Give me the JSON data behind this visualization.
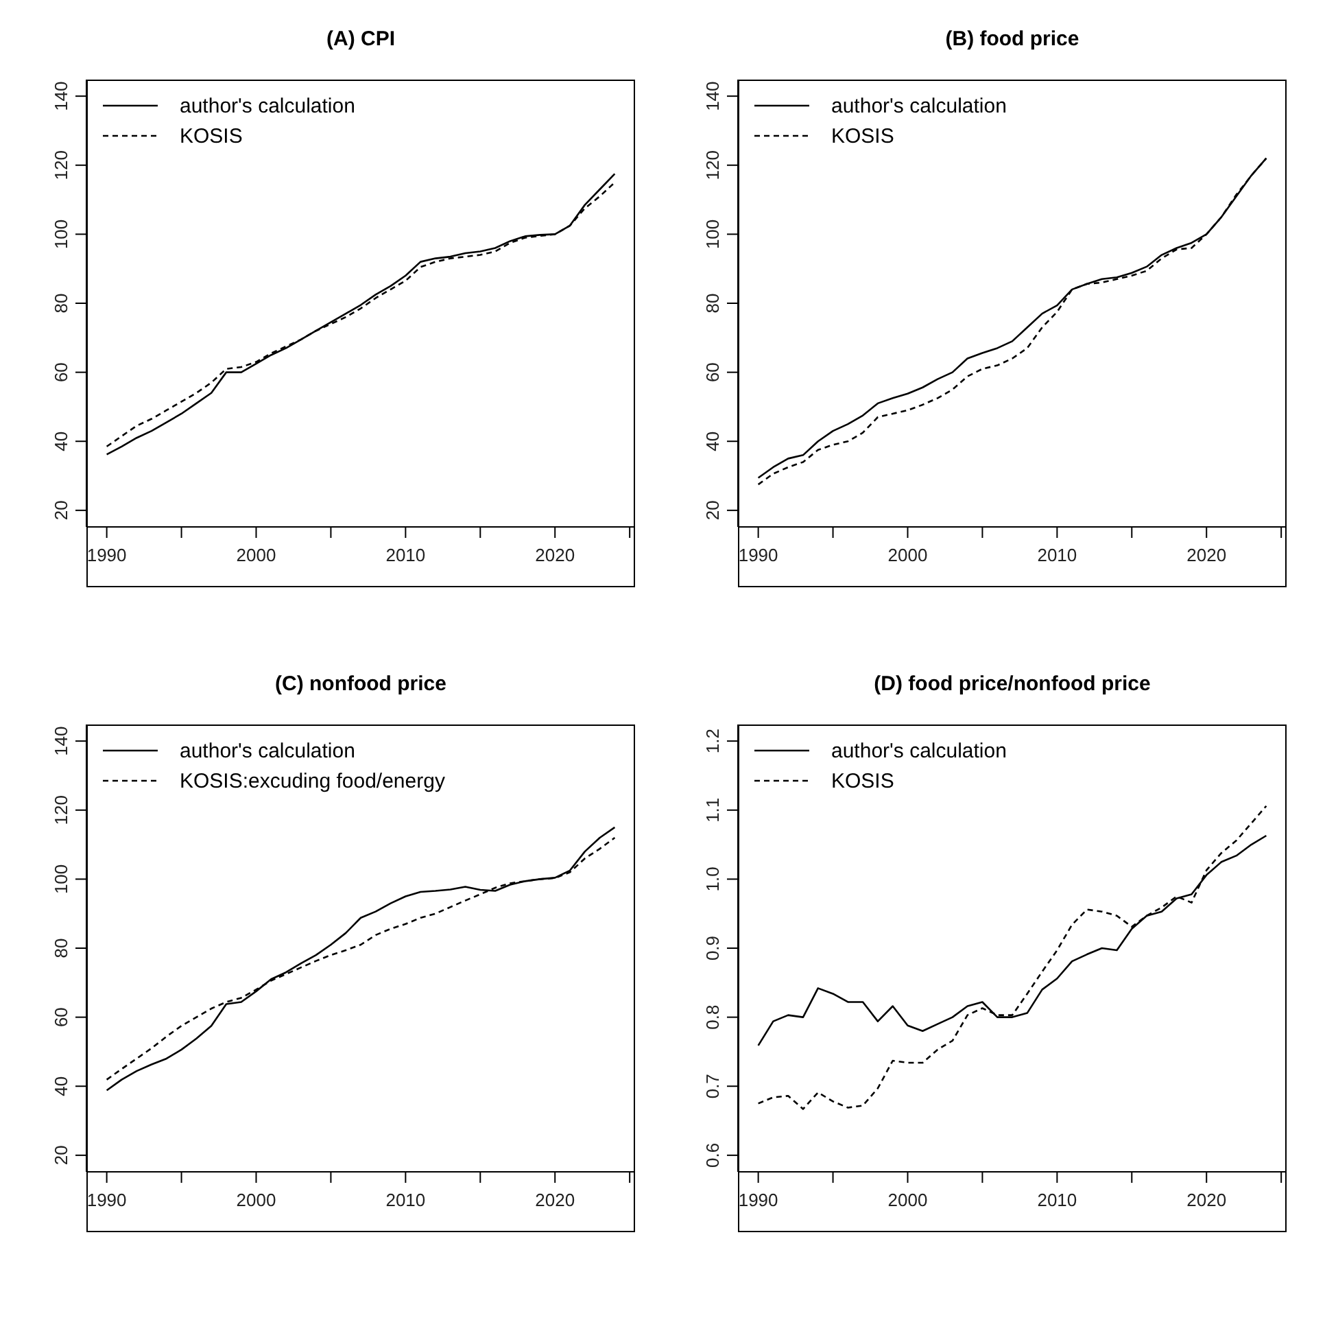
{
  "chart_data": [
    {
      "type": "line",
      "title": "(A) CPI",
      "x": [
        1990,
        1991,
        1992,
        1993,
        1994,
        1995,
        1996,
        1997,
        1998,
        1999,
        2000,
        2001,
        2002,
        2003,
        2004,
        2005,
        2006,
        2007,
        2008,
        2009,
        2010,
        2011,
        2012,
        2013,
        2014,
        2015,
        2016,
        2017,
        2018,
        2019,
        2020,
        2021,
        2022,
        2023,
        2024
      ],
      "series": [
        {
          "name": "author's calculation",
          "color": "#000000",
          "line_style": "solid",
          "values": [
            36.2,
            38.5,
            41,
            43,
            45.5,
            48,
            51,
            54,
            60,
            60,
            62.5,
            65,
            67,
            69.5,
            72,
            74.5,
            77,
            79.5,
            82.5,
            85,
            88,
            92,
            93,
            93.5,
            94.5,
            95,
            96,
            98,
            99.4,
            99.8,
            100,
            102.5,
            108.5,
            113,
            117.5
          ]
        },
        {
          "name": "KOSIS",
          "color": "#000000",
          "line_style": "dashed",
          "values": [
            38.5,
            41.5,
            44.5,
            46.5,
            49,
            51.5,
            54,
            57,
            61,
            61.5,
            63,
            65.5,
            67.5,
            69.5,
            72,
            74,
            76,
            78.5,
            81.5,
            84,
            86.5,
            90.5,
            92,
            93,
            93.5,
            94,
            95,
            97.5,
            99,
            99.5,
            100,
            102.5,
            107.5,
            111,
            115
          ]
        }
      ],
      "xlim": [
        1988.64,
        2025.36
      ],
      "xticks": [
        1990,
        {
          "value": 1995,
          "label": null
        },
        2000,
        {
          "value": 2005,
          "label": null
        },
        2010,
        {
          "value": 2015,
          "label": null
        },
        2020,
        {
          "value": 2025,
          "label": null
        }
      ],
      "ylim": [
        15.2,
        144.8
      ],
      "yticks": [
        20,
        40,
        60,
        80,
        100,
        120,
        140
      ],
      "grid": false,
      "legend": "top left"
    },
    {
      "type": "line",
      "title": "(B) food price",
      "x": [
        1990,
        1991,
        1992,
        1993,
        1994,
        1995,
        1996,
        1997,
        1998,
        1999,
        2000,
        2001,
        2002,
        2003,
        2004,
        2005,
        2006,
        2007,
        2008,
        2009,
        2010,
        2011,
        2012,
        2013,
        2014,
        2015,
        2016,
        2017,
        2018,
        2019,
        2020,
        2021,
        2022,
        2023,
        2024
      ],
      "series": [
        {
          "name": "author's calculation",
          "color": "#000000",
          "line_style": "solid",
          "values": [
            29.4,
            32.5,
            35,
            36,
            40,
            43,
            45,
            47.5,
            51,
            52.5,
            53.8,
            55.6,
            58,
            60,
            64,
            65.6,
            67,
            69,
            73,
            77,
            79.4,
            84,
            85.6,
            87,
            87.5,
            88.8,
            90.6,
            94,
            96,
            97.5,
            100,
            105,
            111,
            117,
            122
          ]
        },
        {
          "name": "KOSIS",
          "color": "#000000",
          "line_style": "dashed",
          "values": [
            27.5,
            30.6,
            32.5,
            34,
            37.5,
            39,
            40,
            42.5,
            47,
            48,
            49,
            50.6,
            52.5,
            55,
            58.8,
            61,
            62,
            64,
            67,
            73,
            77.5,
            84,
            85.6,
            86,
            87,
            88,
            89.4,
            93,
            95.6,
            96,
            100,
            105,
            111.5,
            117,
            122
          ]
        }
      ],
      "xlim": [
        1988.64,
        2025.36
      ],
      "xticks": [
        1990,
        {
          "value": 1995,
          "label": null
        },
        2000,
        {
          "value": 2005,
          "label": null
        },
        2010,
        {
          "value": 2015,
          "label": null
        },
        2020,
        {
          "value": 2025,
          "label": null
        }
      ],
      "ylim": [
        15.2,
        144.8
      ],
      "yticks": [
        20,
        40,
        60,
        80,
        100,
        120,
        140
      ],
      "grid": false,
      "legend": "top left"
    },
    {
      "type": "line",
      "title": "(C) nonfood price",
      "x": [
        1990,
        1991,
        1992,
        1993,
        1994,
        1995,
        1996,
        1997,
        1998,
        1999,
        2000,
        2001,
        2002,
        2003,
        2004,
        2005,
        2006,
        2007,
        2008,
        2009,
        2010,
        2011,
        2012,
        2013,
        2014,
        2015,
        2016,
        2017,
        2018,
        2019,
        2020,
        2021,
        2022,
        2023,
        2024
      ],
      "series": [
        {
          "name": "author's calculation",
          "color": "#000000",
          "line_style": "solid",
          "values": [
            38.8,
            41.9,
            44.4,
            46.3,
            48,
            50.6,
            53.8,
            57.5,
            63.8,
            64.4,
            67.5,
            71,
            73,
            75.6,
            78,
            81,
            84.4,
            88.8,
            90.6,
            93,
            95,
            96.3,
            96.6,
            97,
            97.8,
            96.9,
            96.6,
            98.4,
            99.4,
            100,
            100.4,
            102.5,
            108,
            112,
            115
          ]
        },
        {
          "name": "KOSIS:excuding food/energy",
          "color": "#000000",
          "line_style": "dashed",
          "values": [
            41.9,
            45,
            48,
            51,
            54.4,
            57.5,
            60,
            62.5,
            64.4,
            65.6,
            68,
            70.6,
            72.5,
            74.4,
            76.3,
            78,
            79.4,
            81,
            83.8,
            85.6,
            87,
            88.8,
            90,
            91.9,
            93.8,
            95.6,
            97.5,
            98.8,
            99.4,
            100,
            100.3,
            102,
            106,
            108.8,
            112
          ]
        }
      ],
      "xlim": [
        1988.64,
        2025.36
      ],
      "xticks": [
        1990,
        {
          "value": 1995,
          "label": null
        },
        2000,
        {
          "value": 2005,
          "label": null
        },
        2010,
        {
          "value": 2015,
          "label": null
        },
        2020,
        {
          "value": 2025,
          "label": null
        }
      ],
      "ylim": [
        15.2,
        144.8
      ],
      "yticks": [
        20,
        40,
        60,
        80,
        100,
        120,
        140
      ],
      "grid": false,
      "legend": "top left"
    },
    {
      "type": "line",
      "title": "(D) food price/nonfood price",
      "x": [
        1990,
        1991,
        1992,
        1993,
        1994,
        1995,
        1996,
        1997,
        1998,
        1999,
        2000,
        2001,
        2002,
        2003,
        2004,
        2005,
        2006,
        2007,
        2008,
        2009,
        2010,
        2011,
        2012,
        2013,
        2014,
        2015,
        2016,
        2017,
        2018,
        2019,
        2020,
        2021,
        2022,
        2023,
        2024
      ],
      "series": [
        {
          "name": "author's calculation",
          "color": "#000000",
          "line_style": "solid",
          "values": [
            0.759,
            0.794,
            0.803,
            0.8,
            0.842,
            0.834,
            0.822,
            0.822,
            0.794,
            0.816,
            0.788,
            0.78,
            0.79,
            0.8,
            0.816,
            0.822,
            0.8,
            0.8,
            0.806,
            0.84,
            0.856,
            0.881,
            0.891,
            0.9,
            0.897,
            0.928,
            0.947,
            0.953,
            0.972,
            0.978,
            1.006,
            1.025,
            1.034,
            1.05,
            1.063
          ]
        },
        {
          "name": "KOSIS",
          "color": "#000000",
          "line_style": "dashed",
          "values": [
            0.675,
            0.684,
            0.686,
            0.667,
            0.691,
            0.678,
            0.669,
            0.672,
            0.697,
            0.737,
            0.734,
            0.734,
            0.753,
            0.766,
            0.803,
            0.813,
            0.803,
            0.803,
            0.834,
            0.866,
            0.897,
            0.934,
            0.956,
            0.953,
            0.947,
            0.931,
            0.947,
            0.959,
            0.975,
            0.966,
            1.013,
            1.038,
            1.056,
            1.081,
            1.106
          ]
        }
      ],
      "xlim": [
        1988.64,
        2025.36
      ],
      "xticks": [
        1990,
        {
          "value": 1995,
          "label": null
        },
        2000,
        {
          "value": 2005,
          "label": null
        },
        2010,
        {
          "value": 2015,
          "label": null
        },
        2020,
        {
          "value": 2025,
          "label": null
        }
      ],
      "ylim": [
        0.576,
        1.224
      ],
      "yticks": [
        0.6,
        0.7,
        0.8,
        0.9,
        {
          "value": 1,
          "label": "1.0"
        },
        1.1,
        1.2
      ],
      "grid": false,
      "legend": "top left"
    }
  ]
}
